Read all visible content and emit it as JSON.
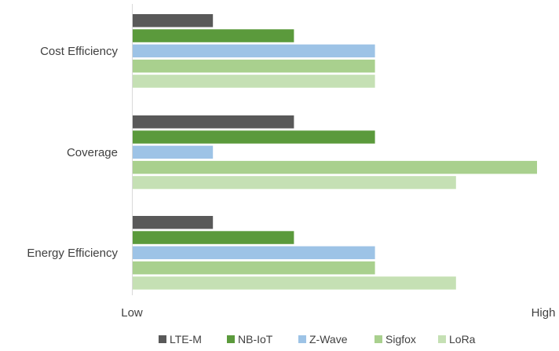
{
  "chart_data": {
    "type": "bar",
    "orientation": "horizontal",
    "categories": [
      "Cost Efficiency",
      "Coverage",
      "Energy Efficiency"
    ],
    "series": [
      {
        "name": "LTE-M",
        "color": "#595959",
        "values": [
          1,
          2,
          1
        ]
      },
      {
        "name": "NB-IoT",
        "color": "#5b9a3c",
        "values": [
          2,
          3,
          2
        ]
      },
      {
        "name": "Z-Wave",
        "color": "#9dc3e6",
        "values": [
          3,
          1,
          3
        ]
      },
      {
        "name": "Sigfox",
        "color": "#a9d08e",
        "values": [
          3,
          5,
          3
        ]
      },
      {
        "name": "LoRa",
        "color": "#c5e0b4",
        "values": [
          3,
          4,
          4
        ]
      }
    ],
    "xlim": [
      0,
      5
    ],
    "x_tick_labels": {
      "min": "Low",
      "max": "High"
    },
    "title": "",
    "xlabel": "",
    "ylabel": "",
    "grid": false,
    "legend_position": "bottom"
  }
}
